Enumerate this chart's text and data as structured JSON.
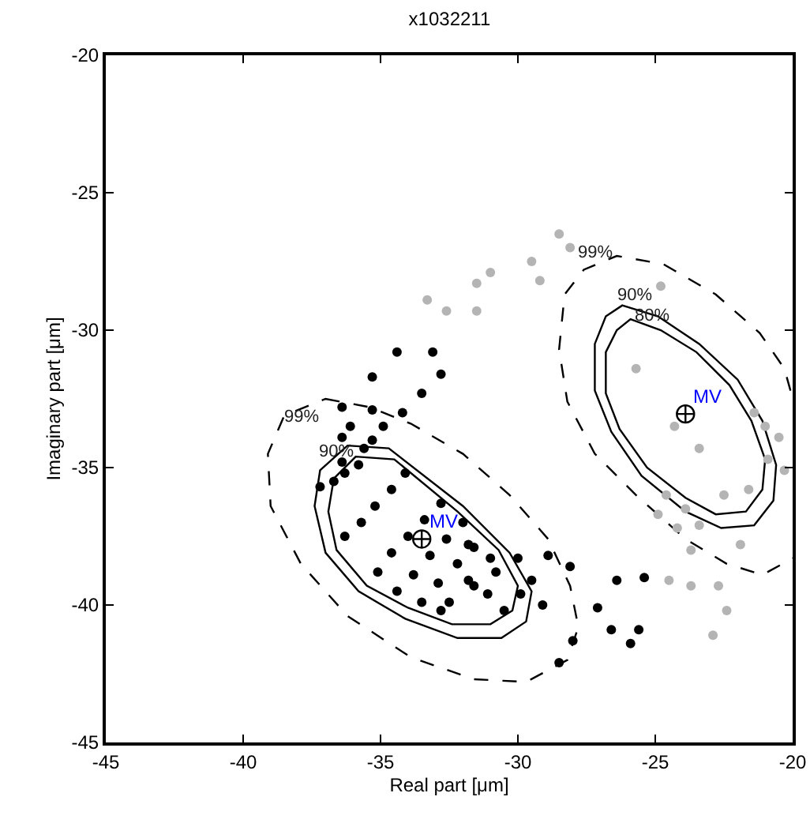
{
  "chart_data": {
    "type": "scatter",
    "title": "x1032211",
    "xlabel": "Real part [μm]",
    "ylabel": "Imaginary part [μm]",
    "xlim": [
      -45,
      -20
    ],
    "xticks": [
      -45,
      -40,
      -35,
      -30,
      -25,
      -20
    ],
    "ylim": [
      -45,
      -20
    ],
    "yticks": [
      -45,
      -40,
      -35,
      -30,
      -25,
      -20
    ],
    "grid": false,
    "marker": "circle",
    "series": [
      {
        "color": "#b4b4b4",
        "x": [
          -28.5,
          -28.1,
          -29.5,
          -29.2,
          -31.0,
          -31.5,
          -31.5,
          -33.3,
          -32.6,
          -24.8,
          -25.7,
          -21.4,
          -21.0,
          -20.5,
          -20.3,
          -20.9,
          -21.6,
          -22.5,
          -23.4,
          -24.2,
          -24.9,
          -23.7,
          -21.9,
          -24.5,
          -23.7,
          -22.7,
          -22.4,
          -22.9,
          -23.9,
          -24.6,
          -24.3,
          -23.4
        ],
        "values": [
          -26.5,
          -27.0,
          -27.5,
          -28.2,
          -27.9,
          -28.3,
          -29.3,
          -28.9,
          -29.3,
          -28.4,
          -31.4,
          -33.0,
          -33.5,
          -33.9,
          -35.1,
          -34.7,
          -35.8,
          -36.0,
          -37.1,
          -37.2,
          -36.7,
          -38.0,
          -37.8,
          -39.1,
          -39.3,
          -39.3,
          -40.2,
          -41.1,
          -36.5,
          -36.0,
          -33.5,
          -34.3
        ]
      },
      {
        "color": "#000000",
        "x": [
          -34.4,
          -33.1,
          -35.3,
          -32.8,
          -33.5,
          -36.4,
          -35.3,
          -34.2,
          -36.1,
          -34.9,
          -36.4,
          -35.3,
          -35.6,
          -36.4,
          -37.2,
          -36.7,
          -36.3,
          -35.8,
          -36.3,
          -35.7,
          -35.2,
          -34.6,
          -34.1,
          -34.6,
          -34.0,
          -33.4,
          -32.8,
          -34.4,
          -33.8,
          -33.2,
          -32.6,
          -32.0,
          -33.5,
          -32.9,
          -32.2,
          -31.6,
          -32.5,
          -31.8,
          -31.0,
          -31.6,
          -30.8,
          -30.0,
          -30.5,
          -29.9,
          -35.1,
          -31.8,
          -32.8,
          -28.9,
          -28.1,
          -29.5,
          -29.1,
          -31.1,
          -27.1,
          -26.4,
          -25.4,
          -26.6,
          -25.6,
          -25.9,
          -28.5,
          -28.0
        ],
        "values": [
          -30.8,
          -30.8,
          -31.7,
          -31.6,
          -32.3,
          -32.8,
          -32.9,
          -33.0,
          -33.5,
          -33.5,
          -33.9,
          -34.0,
          -34.3,
          -34.8,
          -35.7,
          -35.5,
          -35.2,
          -34.9,
          -37.5,
          -37.0,
          -36.4,
          -35.8,
          -35.2,
          -38.1,
          -37.5,
          -36.9,
          -36.3,
          -39.5,
          -38.9,
          -38.2,
          -37.6,
          -37.0,
          -39.9,
          -39.2,
          -38.5,
          -37.9,
          -39.9,
          -39.1,
          -38.3,
          -39.3,
          -38.8,
          -38.3,
          -40.2,
          -39.6,
          -38.8,
          -37.8,
          -40.2,
          -38.2,
          -38.6,
          -39.1,
          -40.0,
          -39.6,
          -40.1,
          -39.1,
          -39.0,
          -40.9,
          -40.9,
          -41.4,
          -42.1,
          -41.3
        ]
      },
      {
        "color": "#000000",
        "marker": "cross",
        "x": [
          -33.5,
          -23.9
        ],
        "values": [
          -37.6,
          -33.05
        ]
      }
    ],
    "annotations": [
      "99%",
      "90%",
      {
        "text": "MV",
        "x": -33.5,
        "y": -37.6
      },
      "99%",
      "90%",
      "80%",
      {
        "text": "MV",
        "x": -23.9,
        "y": -33.05
      }
    ]
  }
}
